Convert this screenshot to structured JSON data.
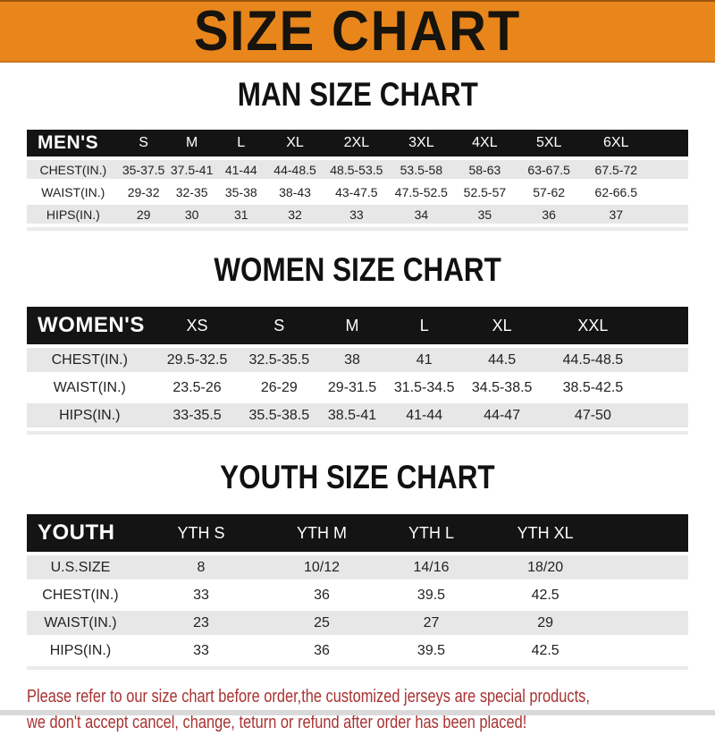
{
  "banner": {
    "title": "SIZE CHART",
    "bg_color": "#E8861C",
    "text_color": "#17130d"
  },
  "table_style": {
    "header_bg": "#141414",
    "header_text": "#FFFFFF",
    "alt_row_bg": "#E7E7E7",
    "body_text": "#222222"
  },
  "chart_data": [
    {
      "type": "table",
      "title": "MAN SIZE CHART",
      "corner_label": "MEN'S",
      "columns": [
        "S",
        "M",
        "L",
        "XL",
        "2XL",
        "3XL",
        "4XL",
        "5XL",
        "6XL"
      ],
      "rows": [
        {
          "label": "CHEST(IN.)",
          "values": [
            "35-37.5",
            "37.5-41",
            "41-44",
            "44-48.5",
            "48.5-53.5",
            "53.5-58",
            "58-63",
            "63-67.5",
            "67.5-72"
          ]
        },
        {
          "label": "WAIST(IN.)",
          "values": [
            "29-32",
            "32-35",
            "35-38",
            "38-43",
            "43-47.5",
            "47.5-52.5",
            "52.5-57",
            "57-62",
            "62-66.5"
          ]
        },
        {
          "label": "HIPS(IN.)",
          "values": [
            "29",
            "30",
            "31",
            "32",
            "33",
            "34",
            "35",
            "36",
            "37"
          ]
        }
      ]
    },
    {
      "type": "table",
      "title": "WOMEN SIZE CHART",
      "corner_label": "WOMEN'S",
      "columns": [
        "XS",
        "S",
        "M",
        "L",
        "XL",
        "XXL"
      ],
      "rows": [
        {
          "label": "CHEST(IN.)",
          "values": [
            "29.5-32.5",
            "32.5-35.5",
            "38",
            "41",
            "44.5",
            "44.5-48.5"
          ]
        },
        {
          "label": "WAIST(IN.)",
          "values": [
            "23.5-26",
            "26-29",
            "29-31.5",
            "31.5-34.5",
            "34.5-38.5",
            "38.5-42.5"
          ]
        },
        {
          "label": "HIPS(IN.)",
          "values": [
            "33-35.5",
            "35.5-38.5",
            "38.5-41",
            "41-44",
            "44-47",
            "47-50"
          ]
        }
      ]
    },
    {
      "type": "table",
      "title": "YOUTH SIZE CHART",
      "corner_label": "YOUTH",
      "columns": [
        "YTH S",
        "YTH M",
        "YTH L",
        "YTH XL"
      ],
      "rows": [
        {
          "label": "U.S.SIZE",
          "values": [
            "8",
            "10/12",
            "14/16",
            "18/20"
          ]
        },
        {
          "label": "CHEST(IN.)",
          "values": [
            "33",
            "36",
            "39.5",
            "42.5"
          ]
        },
        {
          "label": "WAIST(IN.)",
          "values": [
            "23",
            "25",
            "27",
            "29"
          ]
        },
        {
          "label": "HIPS(IN.)",
          "values": [
            "33",
            "36",
            "39.5",
            "42.5"
          ]
        }
      ]
    }
  ],
  "footer": {
    "line1": "Please refer to our size chart before order,the customized jerseys are special products,",
    "line2": "we don't accept cancel, change, teturn or refund after order has been placed!",
    "text_color": "#A93131"
  }
}
